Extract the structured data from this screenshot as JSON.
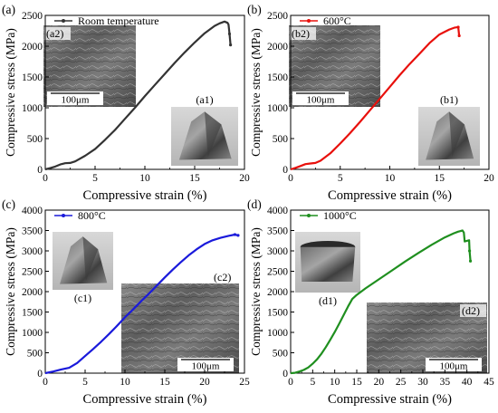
{
  "chart_data": [
    {
      "type": "line",
      "panel_label": "(a)",
      "xlabel": "Compressive strain (%)",
      "ylabel": "Compressive stress (MPa)",
      "xlim": [
        0,
        20
      ],
      "ylim": [
        0,
        2500
      ],
      "xticks": [
        0,
        5,
        10,
        15,
        20
      ],
      "yticks": [
        0,
        500,
        1000,
        1500,
        2000,
        2500
      ],
      "grid": false,
      "legend_position": "top-left",
      "color": "#333333",
      "series": [
        {
          "name": "Room temperature",
          "x": [
            0,
            0.5,
            1.0,
            1.5,
            2.0,
            2.5,
            3.0,
            4.0,
            5.0,
            6.0,
            7.0,
            8.0,
            9.0,
            10.0,
            11.0,
            12.0,
            13.0,
            14.0,
            15.0,
            16.0,
            17.0,
            17.5,
            18.0,
            18.3,
            18.4,
            18.5,
            18.6
          ],
          "y": [
            0,
            20,
            45,
            80,
            100,
            105,
            130,
            220,
            330,
            480,
            640,
            820,
            1000,
            1190,
            1370,
            1550,
            1730,
            1900,
            2060,
            2210,
            2330,
            2370,
            2400,
            2380,
            2350,
            2200,
            2020
          ]
        }
      ],
      "inset_scalebar": "100μm",
      "inset_labels": [
        "(a2)",
        "(a1)"
      ]
    },
    {
      "type": "line",
      "panel_label": "(b)",
      "xlabel": "Compressive strain (%)",
      "ylabel": "Compressive stress (MPa)",
      "xlim": [
        0,
        20
      ],
      "ylim": [
        0,
        2500
      ],
      "xticks": [
        0,
        5,
        10,
        15,
        20
      ],
      "yticks": [
        0,
        500,
        1000,
        1500,
        2000,
        2500
      ],
      "grid": false,
      "legend_position": "top-left",
      "color": "#e8100c",
      "series": [
        {
          "name": "600°C",
          "x": [
            0,
            0.5,
            1.0,
            1.5,
            2.0,
            2.5,
            3.0,
            4.0,
            5.0,
            6.0,
            7.0,
            8.0,
            9.0,
            10.0,
            11.0,
            12.0,
            13.0,
            14.0,
            15.0,
            15.5,
            16.0,
            16.5,
            16.9,
            17.0
          ],
          "y": [
            0,
            25,
            55,
            85,
            95,
            105,
            140,
            260,
            420,
            590,
            770,
            960,
            1150,
            1340,
            1530,
            1710,
            1880,
            2050,
            2190,
            2230,
            2270,
            2300,
            2310,
            2170
          ]
        }
      ],
      "inset_scalebar": "100μm",
      "inset_labels": [
        "(b2)",
        "(b1)"
      ]
    },
    {
      "type": "line",
      "panel_label": "(c)",
      "xlabel": "Compressive strain (%)",
      "ylabel": "Compressive stress (MPa)",
      "xlim": [
        0,
        25
      ],
      "ylim": [
        0,
        4000
      ],
      "xticks": [
        0,
        5,
        10,
        15,
        20,
        25
      ],
      "yticks": [
        0,
        500,
        1000,
        1500,
        2000,
        2500,
        3000,
        3500,
        4000
      ],
      "grid": false,
      "legend_position": "top-left",
      "color": "#1a1adb",
      "series": [
        {
          "name": "800°C",
          "x": [
            0,
            1,
            2,
            3,
            4,
            5,
            6,
            7,
            8,
            9,
            10,
            11,
            12,
            13,
            14,
            15,
            16,
            17,
            18,
            19,
            20,
            21,
            22,
            23,
            23.8,
            24.2
          ],
          "y": [
            0,
            40,
            90,
            130,
            250,
            420,
            590,
            770,
            960,
            1160,
            1370,
            1560,
            1760,
            1950,
            2150,
            2350,
            2540,
            2720,
            2890,
            3040,
            3170,
            3260,
            3320,
            3370,
            3400,
            3380
          ]
        }
      ],
      "inset_scalebar": "100μm",
      "inset_labels": [
        "(c1)",
        "(c2)"
      ]
    },
    {
      "type": "line",
      "panel_label": "(d)",
      "xlabel": "Compressive strain (%)",
      "ylabel": "Compressive stress (MPa)",
      "xlim": [
        0,
        45
      ],
      "ylim": [
        0,
        4000
      ],
      "xticks": [
        0,
        5,
        10,
        15,
        20,
        25,
        30,
        35,
        40,
        45
      ],
      "yticks": [
        0,
        500,
        1000,
        1500,
        2000,
        2500,
        3000,
        3500,
        4000
      ],
      "grid": false,
      "legend_position": "top-left",
      "color": "#1f8f1f",
      "series": [
        {
          "name": "1000°C",
          "x": [
            0,
            1,
            2,
            3,
            4,
            5,
            6,
            7,
            8,
            9,
            10,
            11,
            12,
            13,
            14,
            15,
            17,
            20,
            23,
            26,
            29,
            32,
            35,
            37,
            38,
            39,
            39.3,
            39.5,
            40.5,
            40.6,
            40.8
          ],
          "y": [
            0,
            10,
            40,
            80,
            140,
            230,
            340,
            480,
            640,
            820,
            1010,
            1210,
            1420,
            1630,
            1820,
            1920,
            2080,
            2300,
            2520,
            2740,
            2950,
            3150,
            3330,
            3430,
            3470,
            3500,
            3450,
            3230,
            3260,
            3000,
            2750
          ]
        }
      ],
      "inset_scalebar": "100μm",
      "inset_labels": [
        "(d1)",
        "(d2)"
      ]
    }
  ]
}
